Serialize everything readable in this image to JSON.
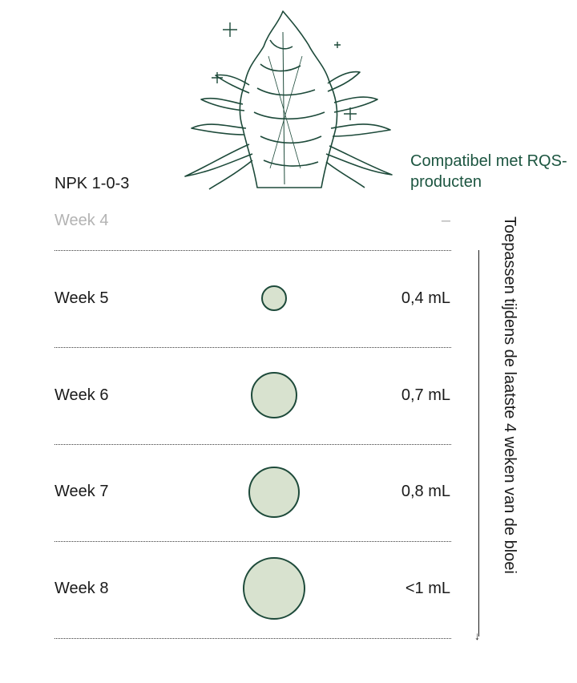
{
  "compat_text": "Compatibel met RQS-producten",
  "npk": "NPK 1-0-3",
  "rows": [
    {
      "label": "Week 4",
      "dose": "–",
      "dose_ml": null
    },
    {
      "label": "Week 5",
      "dose": "0,4 mL",
      "dose_ml": 0.4
    },
    {
      "label": "Week 6",
      "dose": "0,7 mL",
      "dose_ml": 0.7
    },
    {
      "label": "Week 7",
      "dose": "0,8 mL",
      "dose_ml": 0.8
    },
    {
      "label": "Week 8",
      "dose": "<1 mL",
      "dose_ml": 1.0
    }
  ],
  "side_note": "Toepassen tijdens de laatste 4 weken van de bloei",
  "colors": {
    "accent": "#1c5540",
    "dot_fill": "#d8e2cf",
    "dot_stroke": "#1d4a3a",
    "muted": "#b3b3b3"
  },
  "icons": [
    "cannabis-plant-icon",
    "sparkle-icon",
    "down-arrow-icon"
  ]
}
